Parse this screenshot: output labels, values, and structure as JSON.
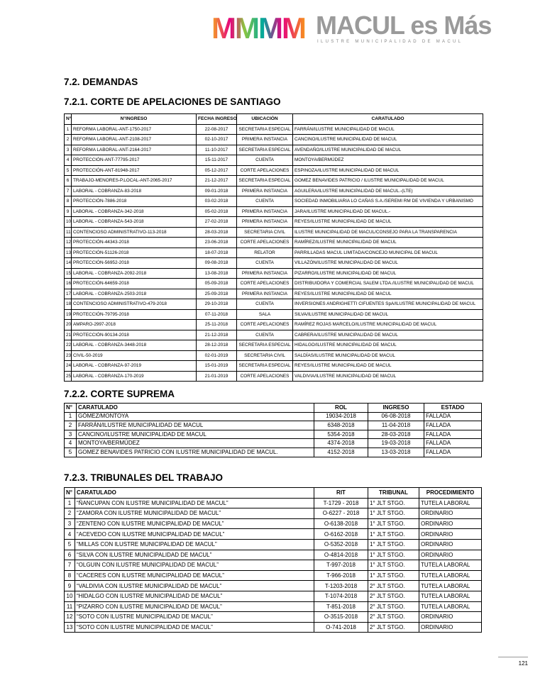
{
  "header": {
    "logo_mark": "MMMM",
    "brand": "MACUL es Más",
    "tagline": "ILUSTRE MUNICIPALIDAD DE MACUL"
  },
  "section": {
    "title": "7.2. DEMANDAS"
  },
  "tables": [
    {
      "title": "7.2.1. CORTE DE APELACIONES DE SANTIAGO",
      "headers": [
        "N°",
        "N°INGRESO",
        "FECHA INGRESO",
        "UBICACIÓN",
        "CARATULADO"
      ],
      "rows": [
        [
          "1",
          "REFORMA LABORAL-ANT-1750-2017",
          "22-08-2017",
          "SECRETARIA ESPECIAL",
          "FARRÁN/ILUSTRE MUNICIPALIDAD DE MACUL"
        ],
        [
          "2",
          "REFORMA LABORAL-ANT-2108-2017",
          "02-10-2017",
          "PRIMERA INSTANCIA",
          "CANCINO/ILUSTRE MUNICIPALIDAD DE MACUL"
        ],
        [
          "3",
          "REFORMA LABORAL-ANT-2164-2017",
          "11-10-2017",
          "SECRETARIA ESPECIAL",
          "AVENDAÑO/ILUSTRE MUNICIPALIDAD DE MACUL"
        ],
        [
          "4",
          "PROTECCIÓN-ANT-77795-2017",
          "15-11-2017",
          "CUENTA",
          "MONTOYA/BERMÚDEZ"
        ],
        [
          "5",
          "PROTECCIÓN-ANT-81948-2017",
          "05-12-2017",
          "CORTE APELACIONES",
          "ESPINOZA/ILUSTRE MUNICIPALIDAD DE MACUL"
        ],
        [
          "6",
          "TRABAJO-MENORES-P.LOCAL-ANT-2065-2017",
          "21-12-2017",
          "SECRETARIA ESPECIAL",
          "GOMEZ BENAVIDES PATRICIO / ILUSTRE MUNICIPALIDAD DE MACUL"
        ],
        [
          "7",
          "LABORAL - COBRANZA-83-2018",
          "09-01-2018",
          "PRIMERA INSTANCIA",
          "AGUILERA/ILUSTRE MUNICIPALIDAD DE MACUL.-(LTE)"
        ],
        [
          "8",
          "PROTECCIÓN-7886-2018",
          "03-02-2018",
          "CUENTA",
          "SOCIEDAD INMOBILIARIA LO CAÑAS S.A./SEREMI RM DE VIVIENDA Y URBANISMO"
        ],
        [
          "9",
          "LABORAL - COBRANZA-342-2018",
          "05-02-2018",
          "PRIMERA INSTANCIA",
          "JARA/ILUSTRE MUNICIPALIDAD DE MACUL.-"
        ],
        [
          "10",
          "LABORAL - COBRANZA-543-2018",
          "27-02-2018",
          "PRIMERA INSTANCIA",
          "REYES/ILUSTRE MUNICIPALIDAD DE MACUL"
        ],
        [
          "11",
          "CONTENCIOSO ADMINISTRATIVO-113-2018",
          "28-03-2018",
          "SECRETARIA CIVIL",
          "ILUSTRE MUNICIPALIDAD DE MACUL/CONSEJO PARA LA TRANSPARENCIA"
        ],
        [
          "12",
          "PROTECCIÓN-44343-2018",
          "23-06-2018",
          "CORTE APELACIONES",
          "RAMÍREZ/ILUSTRE MUNICIPALIDAD DE MACUL"
        ],
        [
          "13",
          "PROTECCIÓN-51126-2018",
          "18-07-2018",
          "RELATOR",
          "PARRILLADAS MACUL LIMITADA/CONCEJO MUNICIPAL DE MACUL"
        ],
        [
          "14",
          "PROTECCIÓN-56952-2018",
          "09-08-2018",
          "CUENTA",
          "VILLAZÓN/ILUSTRE MUNICIPALIDAD DE MACUL"
        ],
        [
          "15",
          "LABORAL - COBRANZA-2092-2018",
          "13-08-2018",
          "PRIMERA INSTANCIA",
          "PIZARRO/ILUSTRE MUNICIPALIDAD DE MACUL"
        ],
        [
          "16",
          "PROTECCIÓN-64659-2018",
          "05-09-2018",
          "CORTE APELACIONES",
          "DISTRIBUIDORA Y COMERCIAL SALEM LTDA./ILUSTRE MUNICIPALIDAD DE MACUL"
        ],
        [
          "17",
          "LABORAL - COBRANZA-2503-2018",
          "25-09-2018",
          "PRIMERA INSTANCIA",
          "REYES/ILUSTRE MUNICIPALIDAD DE MACUL"
        ],
        [
          "18",
          "CONTENCIOSO ADMINISTRATIVO-479-2018",
          "29-10-2018",
          "CUENTA",
          "INVERSIONES ANDRIGHETTI CIFUENTES SpA/ILUSTRE MUNICIPALIDAD DE MACUL"
        ],
        [
          "19",
          "PROTECCIÓN-79795-2018",
          "07-11-2018",
          "SALA",
          "SILVA/ILUSTRE MUNICIPALIDAD DE MACUL"
        ],
        [
          "20",
          "AMPARO-2997-2018",
          "25-11-2018",
          "CORTE APELACIONES",
          "RAMÍREZ ROJAS MARCELO/ILUSTRE MUNICIPALIDAD DE MACUL"
        ],
        [
          "21",
          "PROTECCIÓN-90134-2018",
          "21-12-2018",
          "CUENTA",
          "CABRERA/ILUSTRE MUNICIPALIDAD DE MACUL"
        ],
        [
          "22",
          "LABORAL - COBRANZA-3448-2018",
          "28-12-2018",
          "SECRETARIA ESPECIAL",
          "HIDALGO/ILUSTRE MUNICIPALIDAD DE MACUL"
        ],
        [
          "23",
          "CIVIL-50-2019",
          "02-01-2019",
          "SECRETARIA CIVIL",
          "SALDÍAS/ILUSTRE MUNICIPALIDAD DE MACUL"
        ],
        [
          "24",
          "LABORAL - COBRANZA-97-2019",
          "15-01-2019",
          "SECRETARIA ESPECIAL",
          "REYES/ILUSTRE MUNICIPALIDAD DE MACUL"
        ],
        [
          "25",
          "LABORAL - COBRANZA-170-2019",
          "21-01-2019",
          "CORTE APELACIONES",
          "VALDIVIA/ILUSTRE MUNICIPALIDAD DE MACUL"
        ]
      ]
    },
    {
      "title": "7.2.2. CORTE SUPREMA",
      "headers": [
        "N°",
        "CARATULADO",
        "ROL",
        "INGRESO",
        "ESTADO"
      ],
      "rows": [
        [
          "1",
          "GÓMEZ/MONTOYA",
          "19034-2018",
          "06-08-2018",
          "FALLADA"
        ],
        [
          "2",
          "FARRÁN/ILUSTRE MUNICIPALIDAD DE MACUL",
          "6348-2018",
          "11-04-2018",
          "FALLADA"
        ],
        [
          "3",
          "CANCINO/ILUSTRE MUNICIPALIDAD DE MACUL",
          "5354-2018",
          "28-03-2018",
          "FALLADA"
        ],
        [
          "4",
          "MONTOYA/BERMÚDEZ",
          "4374-2018",
          "19-03-2018",
          "FALLADA"
        ],
        [
          "5",
          "GOMEZ BENAVIDES PATRICIO CON ILUSTRE MUNICIPALIDAD DE MACUL.",
          "4152-2018",
          "13-03-2018",
          "FALLADA"
        ]
      ]
    },
    {
      "title": "7.2.3. TRIBUNALES DEL TRABAJO",
      "headers": [
        "N°",
        "CARATULADO",
        "RIT",
        "TRIBUNAL",
        "PROCEDIMIENTO"
      ],
      "rows": [
        [
          "1",
          "“ÑANCUPAN CON ILUSTRE MUNICIPALIDAD DE MACUL”",
          "T-1729 - 2018",
          "1° JLT STGO.",
          "TUTELA LABORAL"
        ],
        [
          "2",
          "“ZAMORA CON ILUSTRE MUNICIPALIDAD DE MACUL”",
          "O-6227 - 2018",
          "1° JLT STGO.",
          "ORDINARIO"
        ],
        [
          "3",
          "“ZENTENO CON ILUSTRE MUNICIPALIDAD DE MACUL”",
          "O-6138-2018",
          "1° JLT STGO.",
          "ORDINARIO"
        ],
        [
          "4",
          "“ACEVEDO CON ILUSTRE MUNICIPALIDAD DE MACUL”",
          "O-6162-2018",
          "1° JLT STGO.",
          "ORDINARIO"
        ],
        [
          "5",
          "“MILLAS CON ILUSTRE MUNICIPALIDAD DE MACUL”",
          "O-5352-2018",
          "1° JLT STGO.",
          "ORDINARIO"
        ],
        [
          "6",
          "“SILVA CON ILUSTRE MUNICIPALIDAD DE MACUL”",
          "O-4814-2018",
          "1° JLT STGO.",
          "ORDINARIO"
        ],
        [
          "7",
          "“OLGUIN CON ILUSTRE MUNICIPALIDAD DE MACUL”",
          "T-997-2018",
          "1° JLT STGO.",
          "TUTELA LABORAL"
        ],
        [
          "8",
          "“CACERES CON ILUSTRE MUNICIPALIDAD DE MACUL”",
          "T-966-2018",
          "1° JLT STGO.",
          "TUTELA LABORAL"
        ],
        [
          "9",
          "“VALDIVIA CON ILUSTRE MUNICIPALIDAD DE MACUL”",
          "T-1203-2018",
          "2° JLT STGO.",
          "TUTELA LABORAL"
        ],
        [
          "10",
          "“HIDALGO CON ILUSTRE MUNICIPALIDAD DE MACUL”",
          "T-1074-2018",
          "2° JLT STGO.",
          "TUTELA LABORAL"
        ],
        [
          "11",
          "“PIZARRO CON ILUSTRE MUNICIPALIDAD DE MACUL”",
          "T-851-2018",
          "2° JLT STGO.",
          "TUTELA LABORAL"
        ],
        [
          "12",
          "“SOTO CON ILUSTRE MUNICIPALIDAD DE MACUL”",
          "O-3515-2018",
          "2° JLT STGO.",
          "ORDINARIO"
        ],
        [
          "13",
          "“SOTO CON ILUSTRE MUNICIPALIDAD DE MACUL”",
          "O-741-2018",
          "2° JLT STGO.",
          "ORDINARIO"
        ]
      ]
    }
  ],
  "footer": {
    "page_number": "121"
  }
}
